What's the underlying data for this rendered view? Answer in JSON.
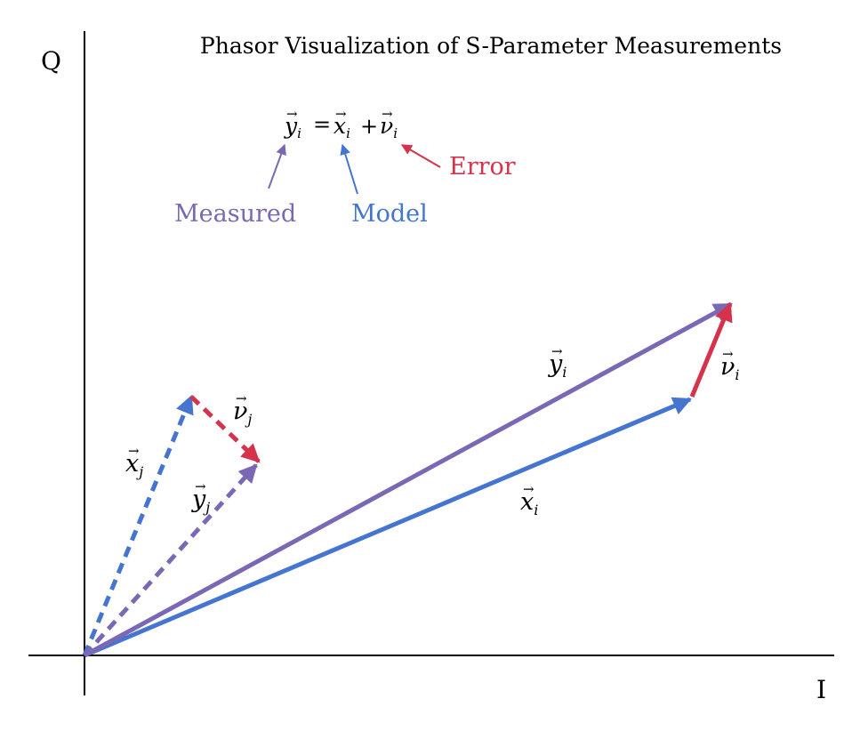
{
  "title": "Phasor Visualization of S-Parameter Measurements",
  "axes": {
    "x_label": "I",
    "y_label": "Q"
  },
  "equation": {
    "lhs": "y",
    "lhs_sub": "i",
    "equals": "=",
    "term1": "x",
    "term1_sub": "i",
    "plus": "+",
    "term2": "ν",
    "term2_sub": "i",
    "arrow_accent": "→"
  },
  "legend": {
    "measured": "Measured",
    "model": "Model",
    "error": "Error"
  },
  "colors": {
    "measured": "#7B68B4",
    "model": "#4575D0",
    "error": "#D5334C",
    "axis": "#000000"
  },
  "vectors": {
    "x_i": {
      "symbol": "x",
      "sub": "i",
      "style": "solid",
      "color_key": "model"
    },
    "y_i": {
      "symbol": "y",
      "sub": "i",
      "style": "solid",
      "color_key": "measured"
    },
    "v_i": {
      "symbol": "ν",
      "sub": "i",
      "style": "solid",
      "color_key": "error"
    },
    "x_j": {
      "symbol": "x",
      "sub": "j",
      "style": "dashed",
      "color_key": "model"
    },
    "y_j": {
      "symbol": "y",
      "sub": "j",
      "style": "dashed",
      "color_key": "measured"
    },
    "v_j": {
      "symbol": "ν",
      "sub": "j",
      "style": "dashed",
      "color_key": "error"
    }
  }
}
